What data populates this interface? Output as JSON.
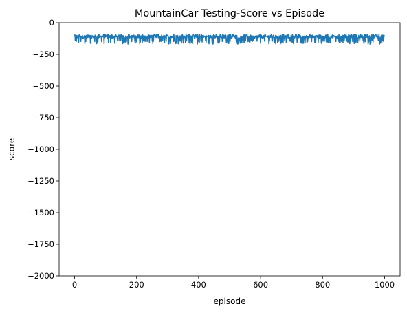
{
  "chart_data": {
    "type": "line",
    "title": "MountainCar Testing-Score vs Episode",
    "xlabel": "episode",
    "ylabel": "score",
    "xlim": [
      -50,
      1050
    ],
    "ylim": [
      -2000,
      0
    ],
    "xticks": [
      0,
      200,
      400,
      600,
      800,
      1000
    ],
    "xtick_labels": [
      "0",
      "200",
      "400",
      "600",
      "800",
      "1000"
    ],
    "yticks": [
      0,
      -250,
      -500,
      -750,
      -1000,
      -1250,
      -1500,
      -1750,
      -2000
    ],
    "ytick_labels": [
      "0",
      "−250",
      "−500",
      "−750",
      "−1000",
      "−1250",
      "−1500",
      "−1750",
      "−2000"
    ],
    "grid": false,
    "legend": "none",
    "series": [
      {
        "color": "#1f77b4",
        "x_range": [
          0,
          1000
        ],
        "y_range": [
          -170,
          -90
        ],
        "y_typical": -110,
        "y_frequent_dips": -150,
        "num_points": 1000
      }
    ]
  }
}
